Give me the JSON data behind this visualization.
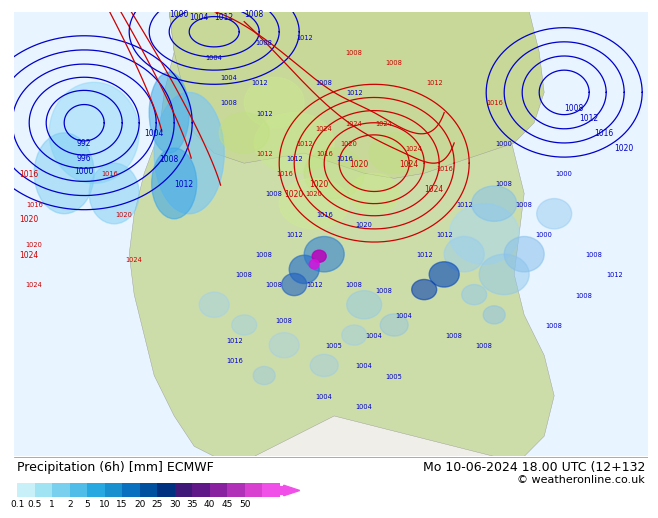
{
  "title_left": "Precipitation (6h) [mm] ECMWF",
  "title_right": "Mo 10-06-2024 18.00 UTC (12+132",
  "copyright": "© weatheronline.co.uk",
  "colorbar_labels": [
    "0.1",
    "0.5",
    "1",
    "2",
    "5",
    "10",
    "15",
    "20",
    "25",
    "30",
    "35",
    "40",
    "45",
    "50"
  ],
  "bg_color": "#ffffff",
  "ocean_color": "#e8f4ff",
  "land_color": "#ccddaa",
  "precip_light_color": "#aaddff",
  "precip_med_color": "#55aaee",
  "precip_dark_color": "#1155cc",
  "precip_intense_color": "#cc00cc",
  "isobar_blue": "#0000cc",
  "isobar_red": "#cc0000",
  "label_fontsize": 8.5,
  "title_fontsize": 9,
  "cbar_colors": [
    "#c8f0f8",
    "#a0e4f4",
    "#78d0ee",
    "#50bce8",
    "#28a8e0",
    "#1890d0",
    "#0870be",
    "#0050a0",
    "#003080",
    "#401878",
    "#601888",
    "#8820a0",
    "#b030b8",
    "#d840d0",
    "#f050e8"
  ]
}
